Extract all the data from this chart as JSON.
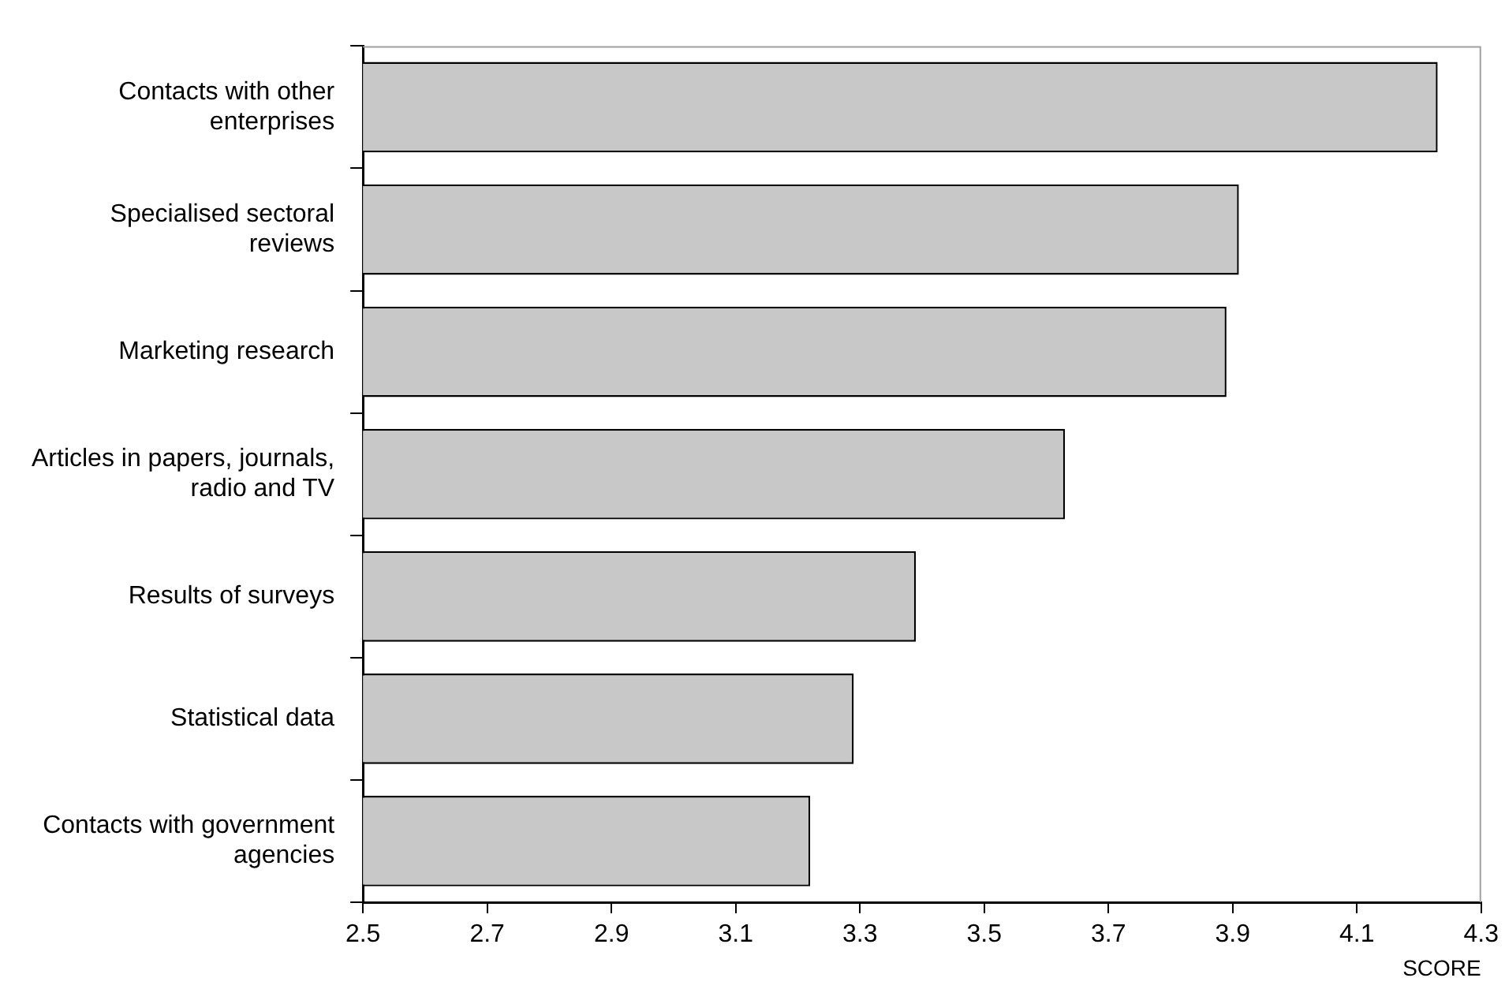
{
  "chart_data": {
    "type": "bar",
    "orientation": "horizontal",
    "xlabel": "SCORE",
    "categories": [
      "Contacts with other enterprises",
      "Specialised sectoral reviews",
      "Marketing research",
      "Articles in papers, journals, radio and TV",
      "Results of surveys",
      "Statistical data",
      "Contacts with government agencies"
    ],
    "values": [
      4.23,
      3.91,
      3.89,
      3.63,
      3.39,
      3.29,
      3.22
    ],
    "color": "#c8c8c8",
    "xlim": [
      2.5,
      4.3
    ],
    "xticks": [
      2.5,
      2.7,
      2.9,
      3.1,
      3.3,
      3.5,
      3.7,
      3.9,
      4.1,
      4.3
    ],
    "grid": false
  }
}
